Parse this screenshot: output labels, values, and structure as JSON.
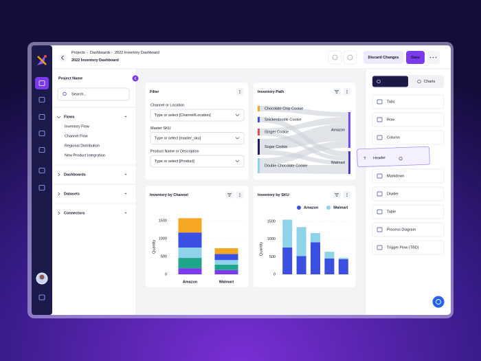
{
  "header": {
    "breadcrumbs": [
      "Projects",
      "Dashboards",
      "2022 Inventory Dashboard"
    ],
    "title": "2022 Inventory Dashboard",
    "actions": [
      "Discard Changes",
      "Save"
    ]
  },
  "sidebar": {
    "title": "Project Name",
    "search_placeholder": "Search...",
    "sections": [
      {
        "label": "Flows",
        "items": [
          "Inventory Flow",
          "Channel Flow",
          "Regional Distribution",
          "New Product Integration"
        ]
      },
      {
        "label": "Dashboards"
      },
      {
        "label": "Datasets"
      },
      {
        "label": "Connectors"
      }
    ]
  },
  "filter": {
    "title": "Filter",
    "fields": [
      {
        "label": "Channel or Location",
        "placeholder": "Type or select [Channel/Location]"
      },
      {
        "label": "Master SKU",
        "placeholder": "Type or select [master_sku]"
      },
      {
        "label": "Product Name or Description",
        "placeholder": "Type or select [Product]"
      }
    ]
  },
  "inventory_path": {
    "title": "Inventory Path",
    "sources": [
      {
        "label": "Chocolate Chip Cookie",
        "color": "#f5a623"
      },
      {
        "label": "Snickerdoodle Cookie",
        "color": "#3b4fe0"
      },
      {
        "label": "Ginger Cookie",
        "color": "#e5484d"
      },
      {
        "label": "Sugar Cookie",
        "color": "#1e1b6e"
      },
      {
        "label": "Double Chocolate Cookie",
        "color": "#8fd3ea"
      }
    ],
    "targets": [
      {
        "label": "Amazon",
        "color": "#6d4aff"
      },
      {
        "label": "Walmart",
        "color": "#4338ca"
      }
    ]
  },
  "chart_data": [
    {
      "type": "bar",
      "stacked": true,
      "title": "Inventory by Channel",
      "ylabel": "Quantity",
      "categories": [
        "Amazon",
        "Walmart"
      ],
      "series": [
        {
          "color": "#7c3aed",
          "values": [
            170,
            120
          ]
        },
        {
          "color": "#1fa58a",
          "values": [
            290,
            150
          ]
        },
        {
          "color": "#8fd3ea",
          "values": [
            290,
            130
          ]
        },
        {
          "color": "#3b4fe0",
          "values": [
            420,
            170
          ]
        },
        {
          "color": "#f5a623",
          "values": [
            400,
            160
          ]
        }
      ],
      "ylim": [
        0,
        1700
      ],
      "yticks": [
        0,
        500,
        1000,
        1500
      ],
      "grid": true
    },
    {
      "type": "bar",
      "stacked": true,
      "title": "Inventory by SKU",
      "ylabel": "Quantity",
      "categories": [
        null,
        null,
        null,
        null,
        null
      ],
      "series": [
        {
          "name": "Amazon",
          "color": "#3b4fe0",
          "values": [
            760,
            520,
            910,
            450,
            430
          ]
        },
        {
          "name": "Walmart",
          "color": "#8fd3ea",
          "values": [
            790,
            820,
            260,
            190,
            40
          ]
        }
      ],
      "ylim": [
        0,
        1600
      ],
      "yticks": [
        0,
        500,
        1000,
        1500
      ],
      "grid": true,
      "legend": "top"
    }
  ],
  "components_panel": {
    "tabs": [
      "Components",
      "Charts"
    ],
    "items": [
      "Tabs",
      "Row",
      "Column",
      "Markdown",
      "Divider",
      "Table",
      "Process Diagram",
      "Trigger Flow (TBD)"
    ],
    "dragged": {
      "label": "Header"
    }
  }
}
